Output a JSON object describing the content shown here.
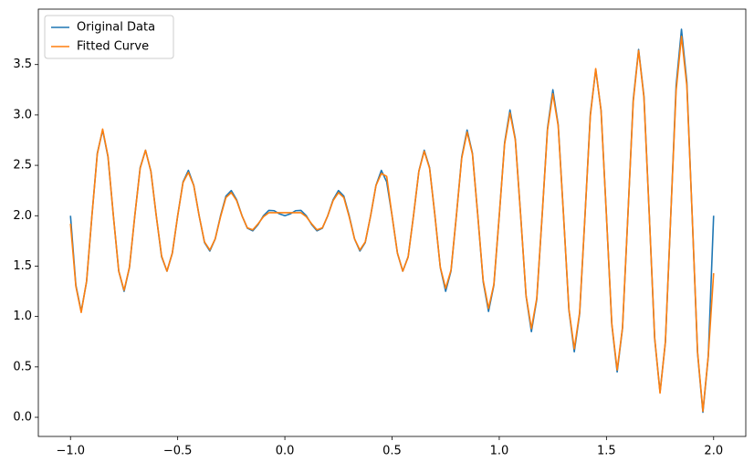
{
  "chart_data": {
    "type": "line",
    "x": [
      -1,
      -0.975,
      -0.95,
      -0.925,
      -0.9,
      -0.875,
      -0.85,
      -0.825,
      -0.8,
      -0.775,
      -0.75,
      -0.725,
      -0.7,
      -0.675,
      -0.65,
      -0.625,
      -0.6,
      -0.575,
      -0.55,
      -0.525,
      -0.5,
      -0.475,
      -0.45,
      -0.425,
      -0.4,
      -0.375,
      -0.35,
      -0.325,
      -0.3,
      -0.275,
      -0.25,
      -0.225,
      -0.2,
      -0.175,
      -0.15,
      -0.125,
      -0.1,
      -0.075,
      -0.05,
      -0.025,
      0,
      0.025,
      0.05,
      0.075,
      0.1,
      0.125,
      0.15,
      0.175,
      0.2,
      0.225,
      0.25,
      0.275,
      0.3,
      0.325,
      0.35,
      0.375,
      0.4,
      0.425,
      0.45,
      0.475,
      0.5,
      0.525,
      0.55,
      0.575,
      0.6,
      0.625,
      0.65,
      0.675,
      0.7,
      0.725,
      0.75,
      0.775,
      0.8,
      0.825,
      0.85,
      0.875,
      0.9,
      0.925,
      0.95,
      0.975,
      1,
      1.025,
      1.05,
      1.075,
      1.1,
      1.125,
      1.15,
      1.175,
      1.2,
      1.225,
      1.25,
      1.275,
      1.3,
      1.325,
      1.35,
      1.375,
      1.4,
      1.425,
      1.45,
      1.475,
      1.5,
      1.525,
      1.55,
      1.575,
      1.6,
      1.625,
      1.65,
      1.675,
      1.7,
      1.725,
      1.75,
      1.775,
      1.8,
      1.825,
      1.85,
      1.875,
      1.9,
      1.925,
      1.95,
      1.975,
      2
    ],
    "series": [
      {
        "name": "Original Data",
        "color": "#1f77b4",
        "values": [
          2,
          1.311,
          1.05,
          1.346,
          2,
          2.619,
          2.85,
          2.583,
          2,
          1.452,
          1.25,
          1.487,
          2,
          2.477,
          2.65,
          2.442,
          2,
          1.593,
          1.45,
          1.629,
          2,
          2.336,
          2.45,
          2.301,
          2,
          1.735,
          1.65,
          1.77,
          2,
          2.194,
          2.25,
          2.159,
          2,
          1.876,
          1.85,
          1.912,
          2,
          2.053,
          2.05,
          2.018,
          2,
          2.018,
          2.05,
          2.053,
          2,
          1.912,
          1.85,
          1.876,
          2,
          2.159,
          2.25,
          2.194,
          2,
          1.77,
          1.65,
          1.735,
          2,
          2.301,
          2.45,
          2.336,
          2,
          1.629,
          1.45,
          1.593,
          2,
          2.442,
          2.65,
          2.477,
          2,
          1.487,
          1.25,
          1.452,
          2,
          2.583,
          2.85,
          2.619,
          2,
          1.346,
          1.05,
          1.311,
          2,
          2.725,
          3.05,
          2.76,
          2,
          1.204,
          0.85,
          1.169,
          2,
          2.866,
          3.25,
          2.902,
          2,
          1.063,
          0.65,
          1.028,
          2,
          3.008,
          3.45,
          3.043,
          2,
          0.922,
          0.45,
          0.886,
          2,
          3.149,
          3.65,
          3.184,
          2,
          0.78,
          0.25,
          0.745,
          2,
          3.29,
          3.85,
          3.326,
          2,
          0.639,
          0.05,
          0.603,
          2
        ]
      },
      {
        "name": "Fitted Curve",
        "color": "#ff7f0e",
        "values": [
          1.92,
          1.3,
          1.04,
          1.35,
          2,
          2.61,
          2.86,
          2.59,
          2,
          1.45,
          1.26,
          1.49,
          2,
          2.47,
          2.65,
          2.44,
          2,
          1.6,
          1.45,
          1.63,
          2,
          2.33,
          2.43,
          2.3,
          2,
          1.74,
          1.66,
          1.77,
          1.99,
          2.18,
          2.23,
          2.15,
          2,
          1.88,
          1.86,
          1.92,
          1.99,
          2.03,
          2.03,
          2.03,
          2.03,
          2.03,
          2.03,
          2.03,
          1.99,
          1.92,
          1.86,
          1.88,
          2,
          2.15,
          2.23,
          2.18,
          1.99,
          1.77,
          1.66,
          1.74,
          2,
          2.3,
          2.42,
          2.39,
          2,
          1.63,
          1.45,
          1.59,
          2,
          2.44,
          2.64,
          2.47,
          2,
          1.49,
          1.28,
          1.46,
          2,
          2.57,
          2.83,
          2.61,
          2,
          1.36,
          1.08,
          1.32,
          2,
          2.71,
          3.02,
          2.75,
          2,
          1.21,
          0.88,
          1.18,
          2,
          2.85,
          3.21,
          2.89,
          2,
          1.07,
          0.68,
          1.04,
          2,
          2.99,
          3.46,
          3.04,
          2,
          0.93,
          0.47,
          0.89,
          2,
          3.13,
          3.64,
          3.17,
          2,
          0.79,
          0.24,
          0.75,
          2,
          3.24,
          3.78,
          3.29,
          2,
          0.65,
          0.06,
          0.61,
          1.43
        ]
      }
    ],
    "xlim": [
      -1.15,
      2.15
    ],
    "xticks": [
      {
        "value": -1,
        "label": "−1.0"
      },
      {
        "value": -0.5,
        "label": "−0.5"
      },
      {
        "value": 0,
        "label": "0.0"
      },
      0.5,
      {
        "value": 1,
        "label": "1.0"
      },
      1.5,
      {
        "value": 2,
        "label": "2.0"
      }
    ],
    "ylim": [
      -0.19,
      4.05
    ],
    "yticks": [
      {
        "value": 0,
        "label": "0.0"
      },
      0.5,
      {
        "value": 1,
        "label": "1.0"
      },
      1.5,
      {
        "value": 2,
        "label": "2.0"
      },
      2.5,
      {
        "value": 3,
        "label": "3.0"
      },
      3.5
    ],
    "legend": "upper left"
  }
}
